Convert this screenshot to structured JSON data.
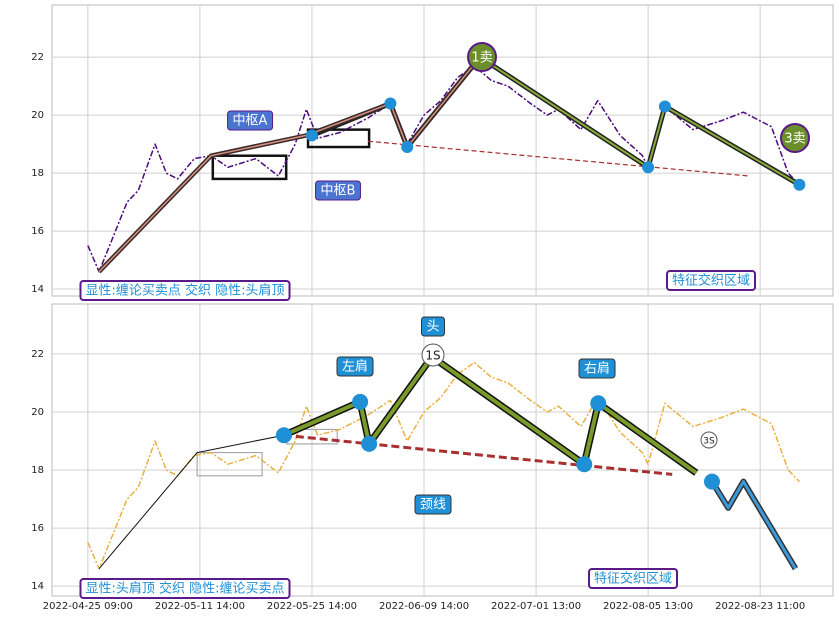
{
  "chart_data": [
    {
      "type": "line",
      "xlim": [
        -6.4,
        133
      ],
      "ylim": [
        13.76,
        23.8
      ],
      "xticks": [
        0,
        20,
        40,
        60,
        80,
        100,
        120
      ],
      "yticks": [
        14,
        16,
        18,
        20,
        22
      ],
      "grid": true,
      "series": [
        {
          "color": "#4b0a7a",
          "dash": "6 2 2 2",
          "width": 1.5,
          "x": [
            0,
            2,
            7,
            9,
            12,
            14,
            16,
            19,
            22,
            25,
            30,
            34,
            37,
            39,
            41,
            45,
            50,
            54,
            57,
            60,
            63,
            66,
            69,
            72,
            75,
            79,
            82,
            84,
            88,
            91,
            95,
            99,
            100,
            103,
            108,
            113,
            117,
            122,
            125,
            127
          ],
          "values": [
            15.5,
            14.6,
            17.0,
            17.4,
            19.0,
            18.0,
            17.8,
            18.5,
            18.6,
            18.2,
            18.5,
            17.9,
            19.0,
            20.2,
            19.2,
            19.4,
            19.9,
            20.4,
            19.0,
            20.0,
            20.5,
            21.3,
            21.7,
            21.2,
            21.0,
            20.4,
            20.0,
            20.2,
            19.5,
            20.5,
            19.3,
            18.6,
            18.2,
            20.3,
            19.5,
            19.8,
            20.1,
            19.6,
            18.0,
            17.6
          ]
        },
        {
          "color": "#a83030",
          "dash": "5 3",
          "width": 1.2,
          "x": [
            50,
            118
          ],
          "values": [
            19.1,
            17.9
          ]
        },
        {
          "color": "#222222",
          "width": 5,
          "x": [
            40,
            54,
            57,
            70,
            100,
            103,
            127
          ],
          "values": [
            19.3,
            20.4,
            18.9,
            22,
            18.2,
            20.3,
            17.6
          ]
        },
        {
          "color": "#d49080",
          "outline": "#3a2a2a",
          "width": 1.5,
          "x": [
            2,
            22,
            39,
            54,
            57,
            70
          ],
          "values": [
            14.6,
            18.6,
            19.3,
            20.4,
            18.9,
            22
          ]
        },
        {
          "color": "#8aaa3a",
          "width": 2,
          "x": [
            70,
            100,
            103,
            127
          ],
          "values": [
            22,
            18.2,
            20.3,
            17.6
          ]
        },
        {
          "color": "#1f8fd6",
          "marker": 6,
          "x": [
            40,
            54,
            57,
            100,
            103,
            127
          ],
          "values": [
            19.3,
            20.4,
            18.9,
            18.2,
            20.3,
            17.6
          ]
        }
      ],
      "boxes": [
        {
          "x": [
            22.3,
            35.4
          ],
          "y": [
            17.8,
            18.6
          ]
        },
        {
          "x": [
            39.3,
            50.2
          ],
          "y": [
            18.9,
            19.5
          ]
        }
      ],
      "annotations": [
        {
          "text": "中枢A"
        },
        {
          "text": "中枢B"
        },
        {
          "text": "1卖"
        },
        {
          "text": "3卖"
        },
        {
          "text": "特征交织区域"
        },
        {
          "text": "显性:缠论买卖点 交织 隐性:头肩顶"
        }
      ]
    },
    {
      "type": "line",
      "xlim": [
        -6.4,
        133
      ],
      "ylim": [
        13.66,
        23.72
      ],
      "xticks": [
        {
          "value": 0,
          "label": "2022-04-25 09:00"
        },
        {
          "value": 20,
          "label": "2022-05-11 14:00"
        },
        {
          "value": 40,
          "label": "2022-05-25 14:00"
        },
        {
          "value": 60,
          "label": "2022-06-09 14:00"
        },
        {
          "value": 80,
          "label": "2022-07-01 13:00"
        },
        {
          "value": 100,
          "label": "2022-08-05 13:00"
        },
        {
          "value": 120,
          "label": "2022-08-23 11:00"
        }
      ],
      "yticks": [
        14,
        16,
        18,
        20,
        22
      ],
      "grid": true,
      "series": [
        {
          "color": "#eab040",
          "dash": "6 2 2 2",
          "width": 1.5,
          "x": [
            0,
            2,
            7,
            9,
            12,
            14,
            16,
            19,
            22,
            25,
            30,
            34,
            37,
            39,
            41,
            45,
            50,
            54,
            57,
            60,
            63,
            66,
            69,
            72,
            75,
            79,
            82,
            84,
            88,
            91,
            95,
            99,
            100,
            103,
            108,
            113,
            117,
            122,
            125,
            127
          ],
          "values": [
            15.5,
            14.6,
            17.0,
            17.4,
            19.0,
            18.0,
            17.8,
            18.5,
            18.6,
            18.2,
            18.5,
            17.9,
            19.0,
            20.2,
            19.2,
            19.4,
            19.9,
            20.4,
            19.0,
            20.0,
            20.5,
            21.3,
            21.7,
            21.2,
            21.0,
            20.4,
            20.0,
            20.2,
            19.5,
            20.5,
            19.3,
            18.6,
            18.2,
            20.3,
            19.5,
            19.8,
            20.1,
            19.6,
            18.0,
            17.6
          ]
        },
        {
          "color": "#111111",
          "width": 1,
          "x": [
            2,
            19.5,
            35,
            48.6,
            50.2,
            61.4
          ],
          "values": [
            14.6,
            18.6,
            19.2,
            20.35,
            18.9,
            21.9
          ]
        },
        {
          "color": "#a83030",
          "dash": "8 4",
          "width": 3,
          "x": [
            35,
            104.3
          ],
          "values": [
            19.2,
            17.85
          ]
        },
        {
          "color": "#7a9a2a",
          "outline": "#111111",
          "width": 4,
          "x": [
            35,
            48.6,
            50.2,
            61.4,
            88.6,
            91.1,
            108.6
          ],
          "values": [
            19.2,
            20.35,
            18.9,
            21.9,
            18.2,
            20.3,
            17.9
          ]
        },
        {
          "color": "#3a9ad9",
          "outline": "#333333",
          "width": 3,
          "x": [
            111.4,
            114.3,
            117,
            126.3
          ],
          "values": [
            17.6,
            16.7,
            17.6,
            14.6
          ]
        },
        {
          "color": "#1f8fd6",
          "marker": 8,
          "x": [
            35,
            48.6,
            50.2,
            88.6,
            91.1,
            111.4
          ],
          "values": [
            19.2,
            20.35,
            18.9,
            18.2,
            20.3,
            17.6
          ]
        }
      ],
      "boxes": [
        {
          "x": [
            19.5,
            31.1
          ],
          "y": [
            17.8,
            18.6
          ]
        },
        {
          "x": [
            35.5,
            44.5
          ],
          "y": [
            18.9,
            19.4
          ]
        }
      ],
      "annotations": [
        {
          "text": "头"
        },
        {
          "text": "左肩"
        },
        {
          "text": "右肩"
        },
        {
          "text": "1S"
        },
        {
          "text": "颈线"
        },
        {
          "text": "3S"
        },
        {
          "text": "特征交织区域"
        },
        {
          "text": "显性:头肩顶 交织 隐性:缠论买卖点"
        }
      ]
    }
  ]
}
